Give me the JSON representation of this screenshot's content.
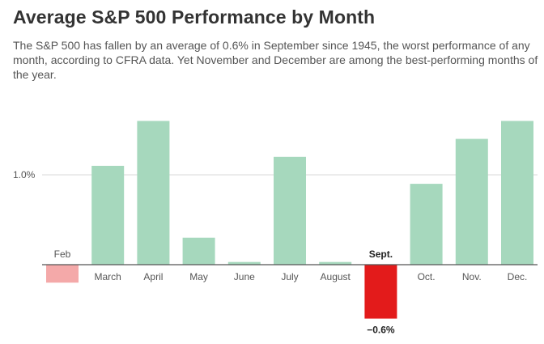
{
  "chart_data": {
    "type": "bar",
    "title": "Average S&P 500 Performance by Month",
    "subtitle": "The S&P 500 has fallen by an average of 0.6% in September since 1945, the worst performance of any month, according to CFRA data. Yet November and December are among the best-performing months of the year.",
    "categories": [
      "Feb",
      "March",
      "April",
      "May",
      "June",
      "July",
      "August",
      "Sept.",
      "Oct.",
      "Nov.",
      "Dec."
    ],
    "values": [
      -0.2,
      1.1,
      1.6,
      0.3,
      0.03,
      1.2,
      0.03,
      -0.6,
      0.9,
      1.4,
      1.6
    ],
    "highlight_index": 7,
    "data_labels": {
      "7": "−0.6%"
    },
    "y_ticks": [
      {
        "value": 1.0,
        "label": "1.0%"
      }
    ],
    "ylim": [
      -0.8,
      1.75
    ],
    "xlabel": "",
    "ylabel": "",
    "grid": true,
    "colors": {
      "positive": "#a6d8bd",
      "negative": "#f4a9a9",
      "highlight": "#e31b1b"
    }
  }
}
